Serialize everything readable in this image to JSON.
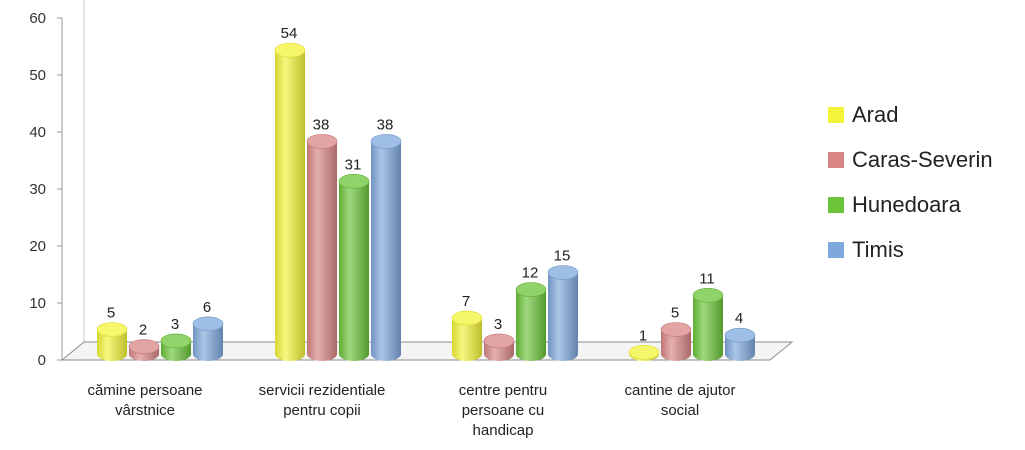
{
  "chart_data": {
    "type": "bar",
    "title": "",
    "xlabel": "",
    "ylabel": "",
    "ylim": [
      0,
      60
    ],
    "yticks": [
      0,
      10,
      20,
      30,
      40,
      50,
      60
    ],
    "categories": [
      [
        "cămine persoane",
        "vârstnice"
      ],
      [
        "servicii rezidentiale",
        "pentru copii"
      ],
      [
        "centre pentru",
        "persoane cu",
        "handicap"
      ],
      [
        "cantine de ajutor",
        "social"
      ]
    ],
    "series": [
      {
        "name": "Arad",
        "values": [
          5,
          54,
          7,
          1
        ],
        "color": "#f3f33a"
      },
      {
        "name": "Caras-Severin",
        "values": [
          2,
          38,
          3,
          5
        ],
        "color": "#d98585"
      },
      {
        "name": "Hunedoara",
        "values": [
          3,
          31,
          12,
          11
        ],
        "color": "#6cc43a"
      },
      {
        "name": "Timis",
        "values": [
          6,
          38,
          15,
          4
        ],
        "color": "#7fa8dc"
      }
    ],
    "legend_position": "right",
    "grid": false,
    "style": "3d-cylinder"
  }
}
